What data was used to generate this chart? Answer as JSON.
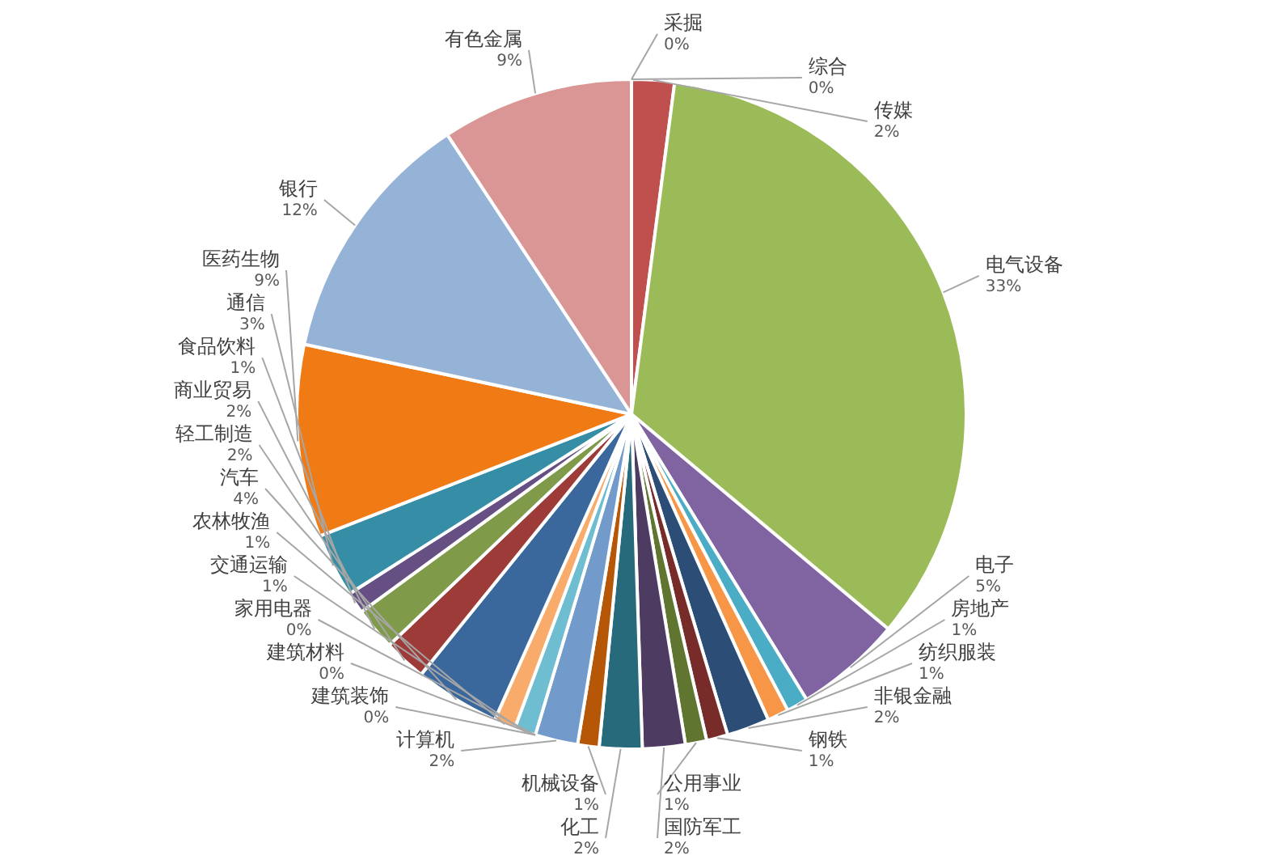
{
  "chart_data": {
    "type": "pie",
    "categories": [
      "采掘",
      "传媒",
      "电气设备",
      "电子",
      "房地产",
      "纺织服装",
      "非银金融",
      "钢铁",
      "公用事业",
      "国防军工",
      "化工",
      "机械设备",
      "计算机",
      "家用电器",
      "建筑材料",
      "建筑装饰",
      "交通运输",
      "农林牧渔",
      "汽车",
      "轻工制造",
      "商业贸易",
      "食品饮料",
      "通信",
      "医药生物",
      "银行",
      "有色金属",
      "综合"
    ],
    "values": [
      0,
      2,
      33,
      5,
      1,
      1,
      2,
      1,
      1,
      2,
      2,
      1,
      2,
      0,
      0,
      0,
      1,
      1,
      4,
      2,
      2,
      1,
      3,
      9,
      12,
      9,
      0
    ],
    "value_labels": [
      "0%",
      "2%",
      "33%",
      "5%",
      "1%",
      "1%",
      "2%",
      "1%",
      "1%",
      "2%",
      "2%",
      "1%",
      "2%",
      "0%",
      "0%",
      "0%",
      "1%",
      "1%",
      "4%",
      "2%",
      "2%",
      "1%",
      "3%",
      "9%",
      "12%",
      "9%",
      "0%"
    ],
    "colors": [
      "#4f81bd",
      "#c0504d",
      "#9bbb59",
      "#8064a2",
      "#4bacc6",
      "#f79646",
      "#2c4d75",
      "#772c2a",
      "#5f7530",
      "#4d3b62",
      "#276a7c",
      "#b65708",
      "#729aca",
      "#d06c6a",
      "#afc97a",
      "#9983b5",
      "#6fbdd1",
      "#f9ab6b",
      "#3a679c",
      "#9c3b38",
      "#7f9a48",
      "#664f82",
      "#358ea6",
      "#f07a13",
      "#95b3d7",
      "#d99694",
      "#c3d69b"
    ],
    "legend": false
  }
}
